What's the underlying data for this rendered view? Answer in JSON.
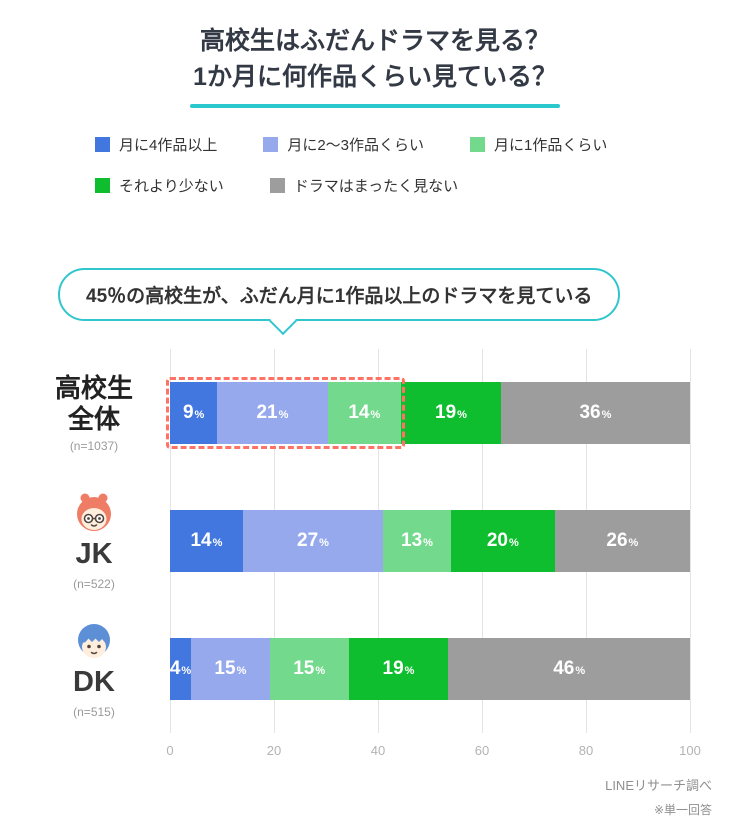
{
  "title": {
    "line1": "高校生はふだんドラマを見る？",
    "line2": "1か月に何作品くらい見ている？"
  },
  "legend": [
    {
      "label": "月に4作品以上",
      "color": "#4377e0"
    },
    {
      "label": "月に2〜3作品くらい",
      "color": "#96a9ec"
    },
    {
      "label": "月に1作品くらい",
      "color": "#73d98c"
    },
    {
      "label": "それより少ない",
      "color": "#0fbe2e"
    },
    {
      "label": "ドラマはまったく見ない",
      "color": "#9d9d9d"
    }
  ],
  "callout": "45％の高校生が、ふだん月に1作品以上のドラマを見ている",
  "chart_data": {
    "type": "bar",
    "variant": "horizontal-stacked",
    "unit": "%",
    "xlim": [
      0,
      100
    ],
    "x_ticks": [
      0,
      20,
      40,
      60,
      80,
      100
    ],
    "grid": true,
    "series_labels": [
      "月に4作品以上",
      "月に2〜3作品くらい",
      "月に1作品くらい",
      "それより少ない",
      "ドラマはまったく見ない"
    ],
    "colors": [
      "#4377e0",
      "#96a9ec",
      "#73d98c",
      "#0fbe2e",
      "#9d9d9d"
    ],
    "categories": [
      {
        "label_lines": [
          "高校生",
          "全体"
        ],
        "n": "(n=1037)",
        "icon": null,
        "highlight_first_n": 3
      },
      {
        "label_lines": [
          "JK"
        ],
        "n": "(n=522)",
        "icon": "jk-face-icon",
        "highlight_first_n": 0
      },
      {
        "label_lines": [
          "DK"
        ],
        "n": "(n=515)",
        "icon": "dk-face-icon",
        "highlight_first_n": 0
      }
    ],
    "values": [
      [
        9,
        21,
        14,
        19,
        36
      ],
      [
        14,
        27,
        13,
        20,
        26
      ],
      [
        4,
        15,
        15,
        19,
        46
      ]
    ]
  },
  "footer": {
    "source": "LINEリサーチ調べ",
    "note": "※単一回答"
  },
  "accent_colors": {
    "title_underline": "#2bc8ce",
    "callout_border": "#30c6ce",
    "highlight_dash": "#fe7365"
  }
}
